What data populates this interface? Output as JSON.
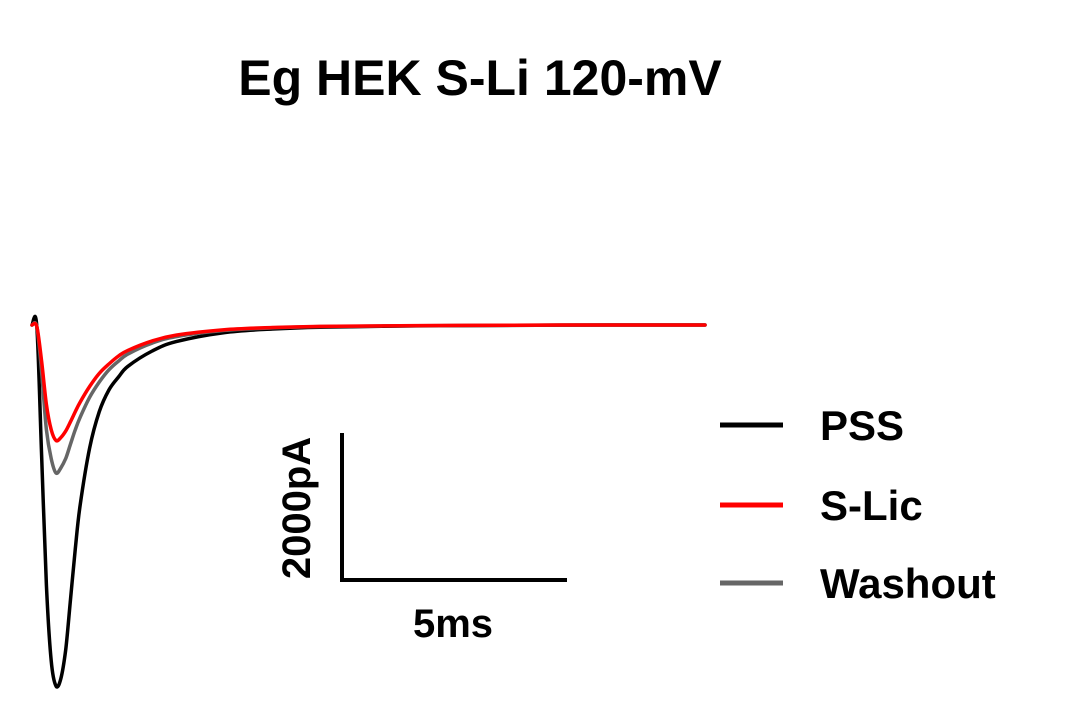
{
  "chart_data": {
    "type": "line",
    "title": "Eg HEK S-Li 120-mV",
    "xlabel": "",
    "ylabel": "",
    "xlim": [
      0,
      14
    ],
    "ylim": [
      -5000,
      100
    ],
    "axes_visible": false,
    "grid": false,
    "legend_position": "right",
    "scale_bar": {
      "x_label": "5ms",
      "x_value": 5,
      "y_label": "2000pA",
      "y_value": 2000
    },
    "x": [
      0,
      0.1,
      0.2,
      0.3,
      0.4,
      0.5,
      0.6,
      0.7,
      0.8,
      0.9,
      1.0,
      1.2,
      1.4,
      1.6,
      1.8,
      2.0,
      2.5,
      3.0,
      4.0,
      5.0,
      6.0,
      8.0,
      10.0,
      12.0,
      14.0
    ],
    "series": [
      {
        "name": "PSS",
        "color": "#000000",
        "values": [
          0,
          -20,
          -1800,
          -3600,
          -4650,
          -5000,
          -4900,
          -4500,
          -3800,
          -3100,
          -2500,
          -1700,
          -1200,
          -900,
          -720,
          -570,
          -360,
          -230,
          -105,
          -55,
          -30,
          -12,
          -5,
          0,
          0
        ]
      },
      {
        "name": "S-Lic",
        "color": "#ff0000",
        "values": [
          0,
          -20,
          -500,
          -1100,
          -1450,
          -1600,
          -1560,
          -1470,
          -1340,
          -1200,
          -1070,
          -850,
          -670,
          -540,
          -430,
          -350,
          -220,
          -140,
          -65,
          -35,
          -20,
          -8,
          -3,
          0,
          0
        ]
      },
      {
        "name": "Washout",
        "color": "#666666",
        "values": [
          0,
          -20,
          -650,
          -1450,
          -1850,
          -2050,
          -1980,
          -1850,
          -1650,
          -1450,
          -1280,
          -1000,
          -790,
          -620,
          -500,
          -400,
          -250,
          -160,
          -75,
          -40,
          -22,
          -10,
          -4,
          0,
          0
        ]
      }
    ]
  }
}
